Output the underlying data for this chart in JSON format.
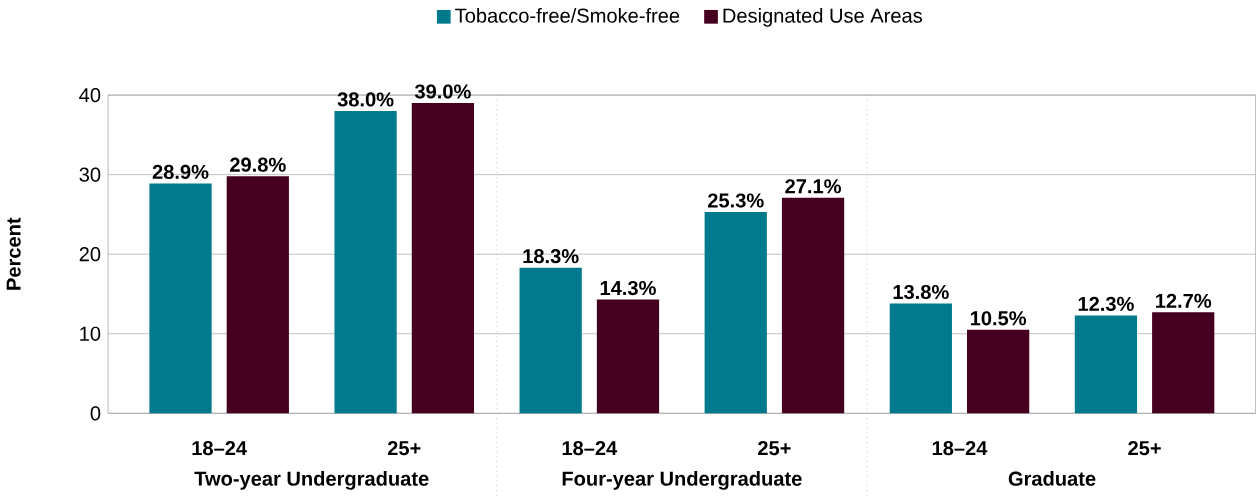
{
  "chart_data": {
    "type": "bar",
    "categories": [
      "18–24",
      "25+",
      "18–24",
      "25+",
      "18–24",
      "25+"
    ],
    "ylabel": "Percent",
    "ylim": [
      0,
      40
    ],
    "yticks": [
      0,
      10,
      20,
      30,
      40
    ],
    "grid": "y",
    "legend": "top",
    "series": [
      {
        "name": "Tobacco-free/Smoke-free",
        "color": "#007a8c",
        "values": [
          28.9,
          38.0,
          18.3,
          25.3,
          13.8,
          12.3
        ],
        "value_labels": [
          "28.9%",
          "38.0%",
          "18.3%",
          "25.3%",
          "13.8%",
          "12.3%"
        ]
      },
      {
        "name": "Designated Use Areas",
        "color": "#450020",
        "values": [
          29.8,
          39.0,
          14.3,
          27.1,
          10.5,
          12.7
        ],
        "value_labels": [
          "29.8%",
          "39.0%",
          "14.3%",
          "27.1%",
          "10.5%",
          "12.7%"
        ]
      }
    ],
    "annotations": [
      "Two-year Undergraduate",
      "Four-year Undergraduate",
      "Graduate"
    ]
  }
}
